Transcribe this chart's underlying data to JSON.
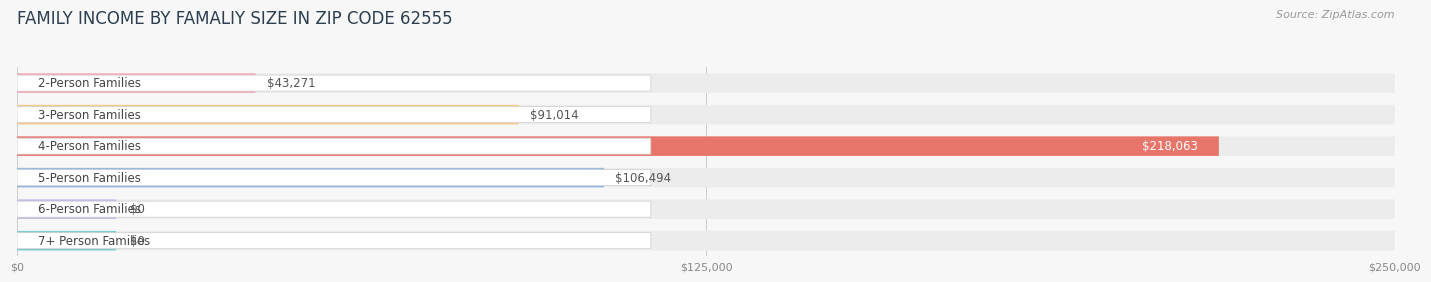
{
  "title": "FAMILY INCOME BY FAMALIY SIZE IN ZIP CODE 62555",
  "source": "Source: ZipAtlas.com",
  "categories": [
    "2-Person Families",
    "3-Person Families",
    "4-Person Families",
    "5-Person Families",
    "6-Person Families",
    "7+ Person Families"
  ],
  "values": [
    43271,
    91014,
    218063,
    106494,
    0,
    0
  ],
  "bar_colors": [
    "#f5a8b8",
    "#f7c98a",
    "#e8756a",
    "#9ab8e0",
    "#c8b8e8",
    "#7ecece"
  ],
  "label_colors": [
    "#555555",
    "#555555",
    "#ffffff",
    "#555555",
    "#555555",
    "#555555"
  ],
  "x_max": 250000,
  "x_ticks": [
    0,
    125000,
    250000
  ],
  "x_tick_labels": [
    "$0",
    "$125,000",
    "$250,000"
  ],
  "background_color": "#f7f7f7",
  "bar_background": "#ececec",
  "title_fontsize": 12,
  "source_fontsize": 8,
  "label_fontsize": 8.5,
  "value_fontsize": 8.5,
  "zero_bar_width": 18000
}
